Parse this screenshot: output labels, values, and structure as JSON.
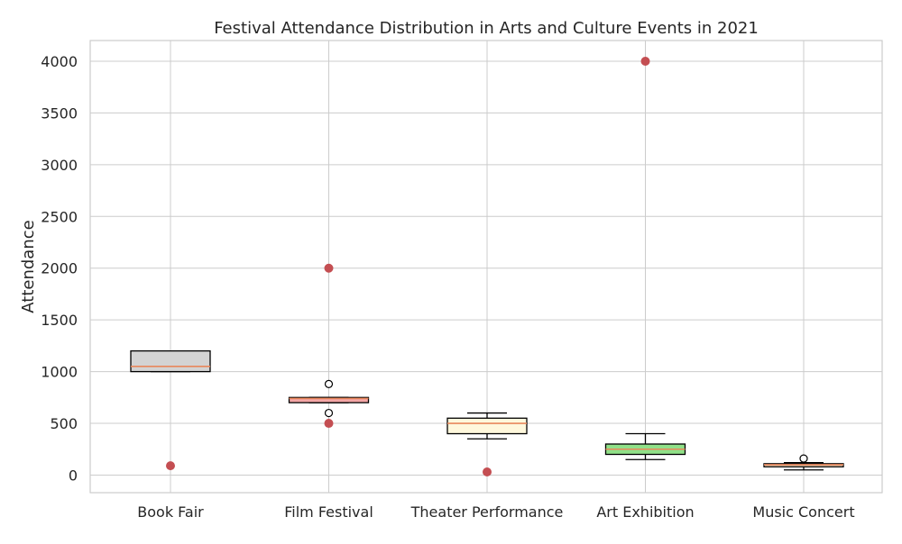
{
  "chart_data": {
    "type": "box",
    "title": "Festival Attendance Distribution in Arts and Culture Events in 2021",
    "xlabel": "",
    "ylabel": "Attendance",
    "ylim": [
      -170,
      4200
    ],
    "yticks": [
      0,
      500,
      1000,
      1500,
      2000,
      2500,
      3000,
      3500,
      4000
    ],
    "grid": true,
    "categories": [
      "Book Fair",
      "Film Festival",
      "Theater Performance",
      "Art Exhibition",
      "Music Concert"
    ],
    "boxes": [
      {
        "category": "Book Fair",
        "whisker_low": 1000,
        "q1": 1000,
        "median": 1050,
        "q3": 1200,
        "whisker_high": 1200,
        "fliers": [],
        "color": "#d3d3d3"
      },
      {
        "category": "Film Festival",
        "whisker_low": 700,
        "q1": 700,
        "median": 740,
        "q3": 750,
        "whisker_high": 750,
        "fliers": [
          600,
          880
        ],
        "color": "#f4a6a6"
      },
      {
        "category": "Theater Performance",
        "whisker_low": 350,
        "q1": 400,
        "median": 500,
        "q3": 550,
        "whisker_high": 600,
        "fliers": [],
        "color": "#fff8dc"
      },
      {
        "category": "Art Exhibition",
        "whisker_low": 150,
        "q1": 200,
        "median": 250,
        "q3": 300,
        "whisker_high": 400,
        "fliers": [],
        "color": "#90e088"
      },
      {
        "category": "Music Concert",
        "whisker_low": 50,
        "q1": 80,
        "median": 100,
        "q3": 110,
        "whisker_high": 120,
        "fliers": [
          160
        ],
        "color": "#ffe4c4"
      }
    ],
    "outliers": [
      {
        "category": "Book Fair",
        "value": 90
      },
      {
        "category": "Film Festival",
        "value": 2000
      },
      {
        "category": "Film Festival",
        "value": 500
      },
      {
        "category": "Theater Performance",
        "value": 30
      },
      {
        "category": "Art Exhibition",
        "value": 4000
      }
    ],
    "outlier_color": "#c44e52",
    "median_color": "#e8875c"
  }
}
